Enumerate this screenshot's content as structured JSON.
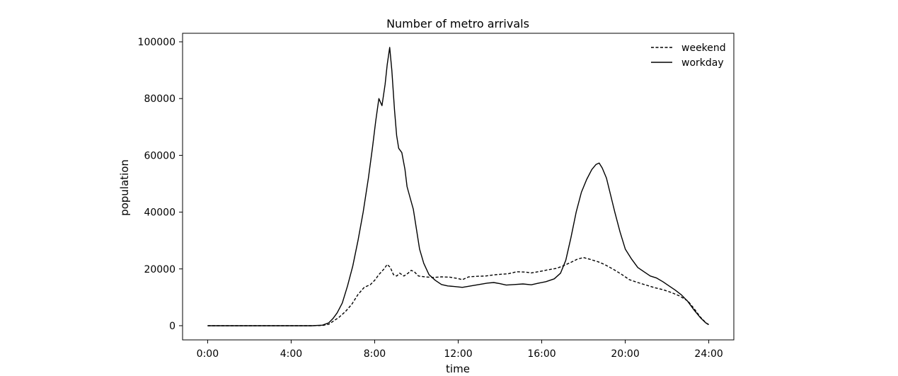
{
  "chart_data": {
    "type": "line",
    "title": "Number of metro arrivals",
    "xlabel": "time",
    "ylabel": "population",
    "x_ticks": [
      "0:00",
      "4:00",
      "8:00",
      "12:00",
      "16:00",
      "20:00",
      "24:00"
    ],
    "x_tick_hours": [
      0,
      4,
      8,
      12,
      16,
      20,
      24
    ],
    "y_ticks": [
      "0",
      "20000",
      "40000",
      "60000",
      "80000",
      "100000"
    ],
    "y_tick_values": [
      0,
      20000,
      40000,
      60000,
      80000,
      100000
    ],
    "xlim_hours": [
      -1.2,
      25.2
    ],
    "ylim": [
      -5000,
      103000
    ],
    "grid": false,
    "legend_position": "top-right",
    "series": [
      {
        "name": "weekend",
        "style": "dashed",
        "color": "#000000",
        "points": [
          [
            0,
            0
          ],
          [
            5.0,
            0
          ],
          [
            5.5,
            100
          ],
          [
            5.8,
            500
          ],
          [
            6.0,
            1500
          ],
          [
            6.3,
            3000
          ],
          [
            6.6,
            5000
          ],
          [
            6.9,
            7500
          ],
          [
            7.2,
            11000
          ],
          [
            7.5,
            13500
          ],
          [
            7.8,
            14500
          ],
          [
            8.0,
            16000
          ],
          [
            8.2,
            18000
          ],
          [
            8.45,
            20000
          ],
          [
            8.6,
            21600
          ],
          [
            8.75,
            20500
          ],
          [
            8.9,
            18000
          ],
          [
            9.05,
            17500
          ],
          [
            9.2,
            18500
          ],
          [
            9.4,
            17500
          ],
          [
            9.6,
            18500
          ],
          [
            9.75,
            19500
          ],
          [
            9.9,
            19000
          ],
          [
            10.1,
            17500
          ],
          [
            10.4,
            17200
          ],
          [
            10.8,
            17000
          ],
          [
            11.2,
            17200
          ],
          [
            11.6,
            17100
          ],
          [
            12.0,
            16600
          ],
          [
            12.2,
            16200
          ],
          [
            12.5,
            17200
          ],
          [
            12.9,
            17400
          ],
          [
            13.3,
            17500
          ],
          [
            13.7,
            17900
          ],
          [
            14.0,
            18100
          ],
          [
            14.4,
            18300
          ],
          [
            14.8,
            19000
          ],
          [
            15.2,
            18900
          ],
          [
            15.5,
            18600
          ],
          [
            15.9,
            19100
          ],
          [
            16.3,
            19700
          ],
          [
            16.7,
            20200
          ],
          [
            17.0,
            21000
          ],
          [
            17.4,
            22300
          ],
          [
            17.7,
            23400
          ],
          [
            18.0,
            24000
          ],
          [
            18.3,
            23400
          ],
          [
            18.7,
            22500
          ],
          [
            19.0,
            21600
          ],
          [
            19.4,
            20000
          ],
          [
            19.8,
            18200
          ],
          [
            20.2,
            16200
          ],
          [
            20.6,
            15200
          ],
          [
            21.0,
            14300
          ],
          [
            21.4,
            13400
          ],
          [
            21.8,
            12700
          ],
          [
            22.2,
            11700
          ],
          [
            22.6,
            10500
          ],
          [
            23.0,
            8700
          ],
          [
            23.3,
            6000
          ],
          [
            23.6,
            3000
          ],
          [
            23.85,
            1100
          ],
          [
            24.0,
            300
          ]
        ]
      },
      {
        "name": "workday",
        "style": "solid",
        "color": "#000000",
        "points": [
          [
            0,
            0
          ],
          [
            5.0,
            0
          ],
          [
            5.5,
            200
          ],
          [
            5.8,
            1000
          ],
          [
            6.0,
            2500
          ],
          [
            6.2,
            4500
          ],
          [
            6.45,
            8000
          ],
          [
            6.7,
            14000
          ],
          [
            6.95,
            21000
          ],
          [
            7.2,
            30000
          ],
          [
            7.45,
            40000
          ],
          [
            7.7,
            52000
          ],
          [
            7.9,
            63000
          ],
          [
            8.05,
            72000
          ],
          [
            8.2,
            80000
          ],
          [
            8.35,
            77500
          ],
          [
            8.5,
            85000
          ],
          [
            8.6,
            92000
          ],
          [
            8.72,
            98000
          ],
          [
            8.82,
            90000
          ],
          [
            8.95,
            76000
          ],
          [
            9.05,
            67000
          ],
          [
            9.15,
            62500
          ],
          [
            9.3,
            61000
          ],
          [
            9.45,
            55000
          ],
          [
            9.55,
            49000
          ],
          [
            9.7,
            45000
          ],
          [
            9.85,
            41000
          ],
          [
            10.0,
            34000
          ],
          [
            10.15,
            27000
          ],
          [
            10.35,
            22000
          ],
          [
            10.6,
            18000
          ],
          [
            10.9,
            16000
          ],
          [
            11.2,
            14500
          ],
          [
            11.5,
            14000
          ],
          [
            11.8,
            13800
          ],
          [
            12.2,
            13500
          ],
          [
            12.6,
            14000
          ],
          [
            13.0,
            14500
          ],
          [
            13.4,
            15000
          ],
          [
            13.7,
            15200
          ],
          [
            14.0,
            14800
          ],
          [
            14.3,
            14300
          ],
          [
            14.7,
            14500
          ],
          [
            15.1,
            14700
          ],
          [
            15.5,
            14400
          ],
          [
            15.8,
            14900
          ],
          [
            16.2,
            15500
          ],
          [
            16.6,
            16500
          ],
          [
            16.9,
            18500
          ],
          [
            17.15,
            23000
          ],
          [
            17.4,
            31000
          ],
          [
            17.65,
            40000
          ],
          [
            17.9,
            47000
          ],
          [
            18.15,
            51500
          ],
          [
            18.4,
            55000
          ],
          [
            18.6,
            56800
          ],
          [
            18.75,
            57300
          ],
          [
            18.9,
            55500
          ],
          [
            19.1,
            52000
          ],
          [
            19.3,
            46000
          ],
          [
            19.5,
            40000
          ],
          [
            19.75,
            33000
          ],
          [
            20.0,
            27000
          ],
          [
            20.3,
            23500
          ],
          [
            20.6,
            20500
          ],
          [
            20.9,
            19000
          ],
          [
            21.2,
            17500
          ],
          [
            21.5,
            16800
          ],
          [
            21.8,
            15500
          ],
          [
            22.1,
            14000
          ],
          [
            22.4,
            12500
          ],
          [
            22.7,
            10800
          ],
          [
            23.0,
            8500
          ],
          [
            23.3,
            5500
          ],
          [
            23.6,
            2800
          ],
          [
            23.85,
            1000
          ],
          [
            24.0,
            400
          ]
        ]
      }
    ]
  }
}
